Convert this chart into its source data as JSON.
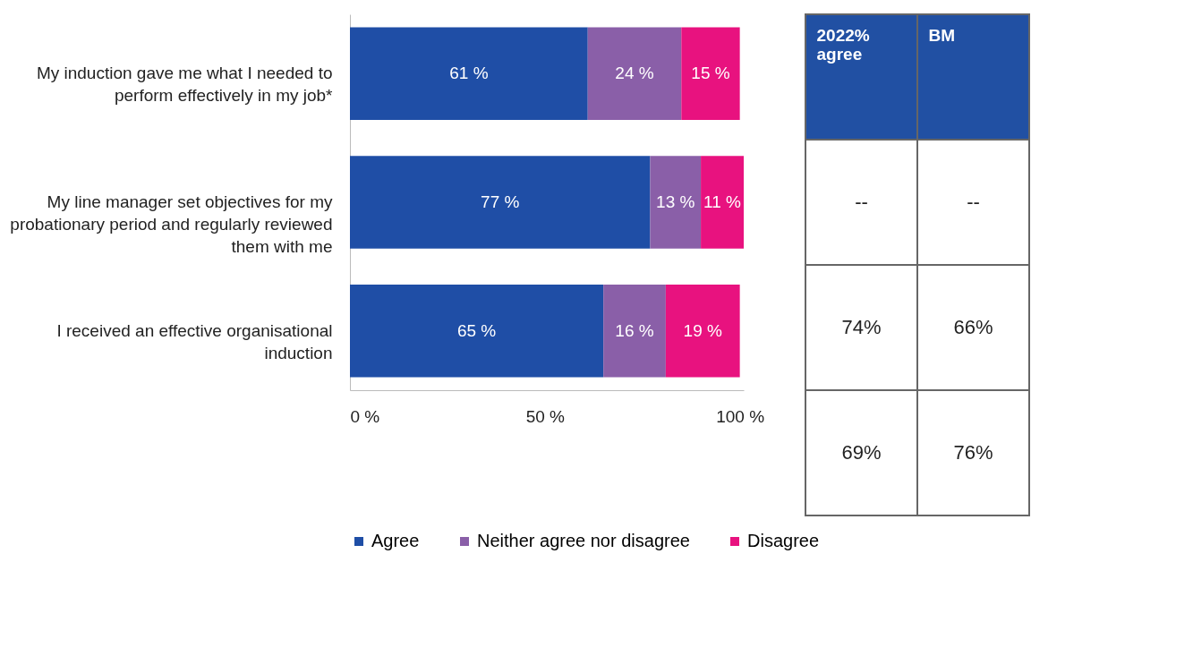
{
  "chart_data": {
    "type": "bar",
    "orientation": "horizontal",
    "stacked": true,
    "categories": [
      "My induction gave me what I needed to perform effectively in my job*",
      "My line manager set objectives for my probationary period and regularly reviewed them with me",
      "I received an effective organisational induction"
    ],
    "series": [
      {
        "name": "Agree",
        "color": "#1f4ea6",
        "values": [
          61,
          77,
          65
        ],
        "value_labels": [
          "61 %",
          "77 %",
          "65 %"
        ]
      },
      {
        "name": "Neither agree nor disagree",
        "color": "#8a5fa8",
        "values": [
          24,
          13,
          16
        ],
        "value_labels": [
          "24 %",
          "13 %",
          "16 %"
        ]
      },
      {
        "name": "Disagree",
        "color": "#e8127f",
        "values": [
          15,
          11,
          19
        ],
        "value_labels": [
          "15 %",
          "11 %",
          "19 %"
        ]
      }
    ],
    "xlim": [
      0,
      101
    ],
    "xticks": [
      {
        "value": 0,
        "label": "0 %"
      },
      {
        "value": 50,
        "label": "50 %"
      },
      {
        "value": 100,
        "label": "100 %"
      }
    ],
    "grid": false,
    "legend": "bottom",
    "annotations": [
      "2022% agree",
      "BM",
      "--",
      "--",
      "74%",
      "66%",
      "69%",
      "76%"
    ]
  }
}
